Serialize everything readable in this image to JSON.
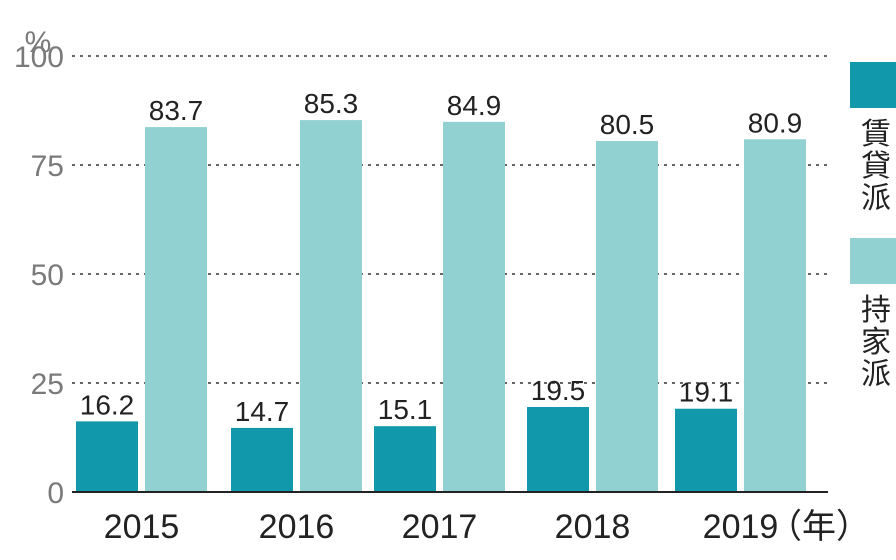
{
  "chart_data": {
    "type": "bar",
    "categories": [
      "2015",
      "2016",
      "2017",
      "2018",
      "2019"
    ],
    "x_unit": "（年）",
    "y_unit": "%",
    "yticks": [
      "0",
      "25",
      "50",
      "75",
      "100"
    ],
    "ylim": [
      0,
      100
    ],
    "grid": true,
    "legend_position": "right",
    "series": [
      {
        "name": "賃貸派",
        "color": "#1199ab",
        "values": [
          16.2,
          14.7,
          15.1,
          19.5,
          19.1
        ],
        "labels": [
          "16.2",
          "14.7",
          "15.1",
          "19.5",
          "19.1"
        ]
      },
      {
        "name": "持家派",
        "color": "#92d1d1",
        "values": [
          83.7,
          85.3,
          84.9,
          80.5,
          80.9
        ],
        "labels": [
          "83.7",
          "85.3",
          "84.9",
          "80.5",
          "80.9"
        ]
      }
    ]
  }
}
